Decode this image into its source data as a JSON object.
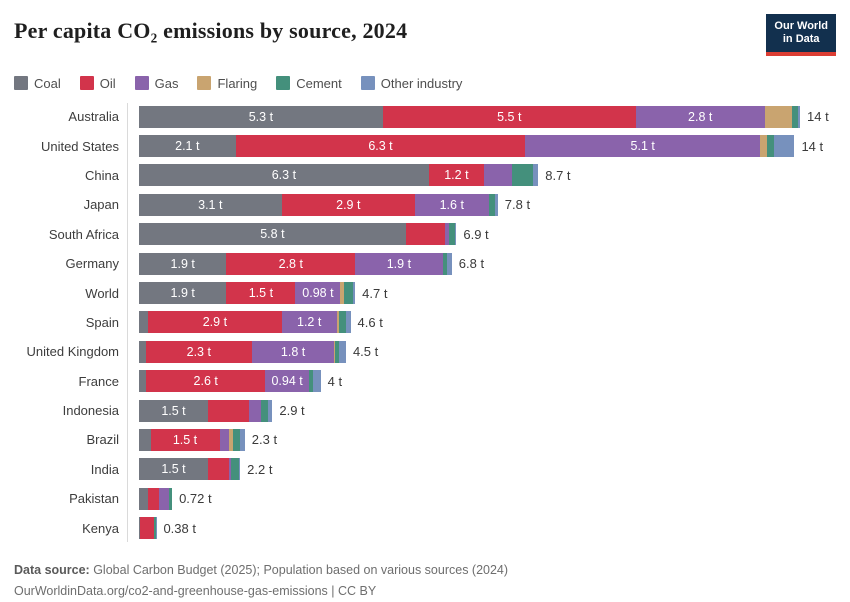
{
  "title": "Per capita CO₂ emissions by source, 2024",
  "logo": {
    "line1": "Our World",
    "line2": "in Data"
  },
  "colors": {
    "coal": "#737780",
    "oil": "#d2344b",
    "gas": "#8a63ab",
    "flaring": "#c9a470",
    "cement": "#44907c",
    "other_industry": "#7791bd",
    "logo_navy": "#12304e",
    "logo_red": "#dc3d33"
  },
  "legend": {
    "items": [
      {
        "key": "coal",
        "label": "Coal"
      },
      {
        "key": "oil",
        "label": "Oil"
      },
      {
        "key": "gas",
        "label": "Gas"
      },
      {
        "key": "flaring",
        "label": "Flaring"
      },
      {
        "key": "cement",
        "label": "Cement"
      },
      {
        "key": "other_industry",
        "label": "Other industry"
      }
    ]
  },
  "chart_data": {
    "type": "bar",
    "orientation": "horizontal-stacked",
    "unit": "t CO₂ per capita",
    "title": "Per capita CO₂ emissions by source, 2024",
    "legend_position": "top",
    "sources_order": [
      "Coal",
      "Oil",
      "Gas",
      "Flaring",
      "Cement",
      "Other industry"
    ],
    "categories": [
      "Australia",
      "United States",
      "China",
      "Japan",
      "South Africa",
      "Germany",
      "World",
      "Spain",
      "United Kingdom",
      "France",
      "Indonesia",
      "Brazil",
      "India",
      "Pakistan",
      "Kenya"
    ],
    "rows": [
      {
        "country": "Australia",
        "total_label": "14 t",
        "segments": [
          {
            "key": "coal",
            "value": 5.3,
            "label": "5.3 t"
          },
          {
            "key": "oil",
            "value": 5.5,
            "label": "5.5 t"
          },
          {
            "key": "gas",
            "value": 2.8,
            "label": "2.8 t"
          },
          {
            "key": "flaring",
            "value": 0.6,
            "label": ""
          },
          {
            "key": "cement",
            "value": 0.12,
            "label": ""
          },
          {
            "key": "other_industry",
            "value": 0.05,
            "label": ""
          }
        ]
      },
      {
        "country": "United States",
        "total_label": "14 t",
        "segments": [
          {
            "key": "coal",
            "value": 2.1,
            "label": "2.1 t"
          },
          {
            "key": "oil",
            "value": 6.3,
            "label": "6.3 t"
          },
          {
            "key": "gas",
            "value": 5.1,
            "label": "5.1 t"
          },
          {
            "key": "flaring",
            "value": 0.15,
            "label": ""
          },
          {
            "key": "cement",
            "value": 0.15,
            "label": ""
          },
          {
            "key": "other_industry",
            "value": 0.45,
            "label": ""
          }
        ]
      },
      {
        "country": "China",
        "total_label": "8.7 t",
        "segments": [
          {
            "key": "coal",
            "value": 6.3,
            "label": "6.3 t"
          },
          {
            "key": "oil",
            "value": 1.2,
            "label": "1.2 t"
          },
          {
            "key": "gas",
            "value": 0.6,
            "label": ""
          },
          {
            "key": "cement",
            "value": 0.46,
            "label": ""
          },
          {
            "key": "other_industry",
            "value": 0.12,
            "label": ""
          }
        ]
      },
      {
        "country": "Japan",
        "total_label": "7.8 t",
        "segments": [
          {
            "key": "coal",
            "value": 3.1,
            "label": "3.1 t"
          },
          {
            "key": "oil",
            "value": 2.9,
            "label": "2.9 t"
          },
          {
            "key": "gas",
            "value": 1.6,
            "label": "1.6 t"
          },
          {
            "key": "cement",
            "value": 0.15,
            "label": ""
          },
          {
            "key": "other_industry",
            "value": 0.05,
            "label": ""
          }
        ]
      },
      {
        "country": "South Africa",
        "total_label": "6.9 t",
        "segments": [
          {
            "key": "coal",
            "value": 5.8,
            "label": "5.8 t"
          },
          {
            "key": "oil",
            "value": 0.85,
            "label": ""
          },
          {
            "key": "gas",
            "value": 0.1,
            "label": ""
          },
          {
            "key": "cement",
            "value": 0.13,
            "label": ""
          },
          {
            "key": "other_industry",
            "value": 0.02,
            "label": ""
          }
        ]
      },
      {
        "country": "Germany",
        "total_label": "6.8 t",
        "segments": [
          {
            "key": "coal",
            "value": 1.9,
            "label": "1.9 t"
          },
          {
            "key": "oil",
            "value": 2.8,
            "label": "2.8 t"
          },
          {
            "key": "gas",
            "value": 1.9,
            "label": "1.9 t"
          },
          {
            "key": "cement",
            "value": 0.1,
            "label": ""
          },
          {
            "key": "other_industry",
            "value": 0.1,
            "label": ""
          }
        ]
      },
      {
        "country": "World",
        "total_label": "4.7 t",
        "segments": [
          {
            "key": "coal",
            "value": 1.9,
            "label": "1.9 t"
          },
          {
            "key": "oil",
            "value": 1.5,
            "label": "1.5 t"
          },
          {
            "key": "gas",
            "value": 0.98,
            "label": "0.98 t"
          },
          {
            "key": "flaring",
            "value": 0.07,
            "label": ""
          },
          {
            "key": "cement",
            "value": 0.2,
            "label": ""
          },
          {
            "key": "other_industry",
            "value": 0.05,
            "label": ""
          }
        ]
      },
      {
        "country": "Spain",
        "total_label": "4.6 t",
        "segments": [
          {
            "key": "coal",
            "value": 0.2,
            "label": ""
          },
          {
            "key": "oil",
            "value": 2.9,
            "label": "2.9 t"
          },
          {
            "key": "gas",
            "value": 1.2,
            "label": "1.2 t"
          },
          {
            "key": "flaring",
            "value": 0.04,
            "label": ""
          },
          {
            "key": "cement",
            "value": 0.16,
            "label": ""
          },
          {
            "key": "other_industry",
            "value": 0.1,
            "label": ""
          }
        ]
      },
      {
        "country": "United Kingdom",
        "total_label": "4.5 t",
        "segments": [
          {
            "key": "coal",
            "value": 0.15,
            "label": ""
          },
          {
            "key": "oil",
            "value": 2.3,
            "label": "2.3 t"
          },
          {
            "key": "gas",
            "value": 1.8,
            "label": "1.8 t"
          },
          {
            "key": "flaring",
            "value": 0.02,
            "label": ""
          },
          {
            "key": "cement",
            "value": 0.08,
            "label": ""
          },
          {
            "key": "other_industry",
            "value": 0.15,
            "label": ""
          }
        ]
      },
      {
        "country": "France",
        "total_label": "4 t",
        "segments": [
          {
            "key": "coal",
            "value": 0.15,
            "label": ""
          },
          {
            "key": "oil",
            "value": 2.6,
            "label": "2.6 t"
          },
          {
            "key": "gas",
            "value": 0.94,
            "label": "0.94 t"
          },
          {
            "key": "cement",
            "value": 0.1,
            "label": ""
          },
          {
            "key": "other_industry",
            "value": 0.16,
            "label": ""
          }
        ]
      },
      {
        "country": "Indonesia",
        "total_label": "2.9 t",
        "segments": [
          {
            "key": "coal",
            "value": 1.5,
            "label": "1.5 t"
          },
          {
            "key": "oil",
            "value": 0.9,
            "label": ""
          },
          {
            "key": "gas",
            "value": 0.25,
            "label": ""
          },
          {
            "key": "cement",
            "value": 0.15,
            "label": ""
          },
          {
            "key": "other_industry",
            "value": 0.1,
            "label": ""
          }
        ]
      },
      {
        "country": "Brazil",
        "total_label": "2.3 t",
        "segments": [
          {
            "key": "coal",
            "value": 0.25,
            "label": ""
          },
          {
            "key": "oil",
            "value": 1.5,
            "label": "1.5 t"
          },
          {
            "key": "gas",
            "value": 0.2,
            "label": ""
          },
          {
            "key": "flaring",
            "value": 0.1,
            "label": ""
          },
          {
            "key": "cement",
            "value": 0.15,
            "label": ""
          },
          {
            "key": "other_industry",
            "value": 0.1,
            "label": ""
          }
        ]
      },
      {
        "country": "India",
        "total_label": "2.2 t",
        "segments": [
          {
            "key": "coal",
            "value": 1.5,
            "label": "1.5 t"
          },
          {
            "key": "oil",
            "value": 0.45,
            "label": ""
          },
          {
            "key": "gas",
            "value": 0.05,
            "label": ""
          },
          {
            "key": "cement",
            "value": 0.17,
            "label": ""
          },
          {
            "key": "other_industry",
            "value": 0.03,
            "label": ""
          }
        ]
      },
      {
        "country": "Pakistan",
        "total_label": "0.72 t",
        "segments": [
          {
            "key": "coal",
            "value": 0.2,
            "label": ""
          },
          {
            "key": "oil",
            "value": 0.24,
            "label": ""
          },
          {
            "key": "gas",
            "value": 0.22,
            "label": ""
          },
          {
            "key": "cement",
            "value": 0.06,
            "label": ""
          }
        ]
      },
      {
        "country": "Kenya",
        "total_label": "0.38 t",
        "segments": [
          {
            "key": "coal",
            "value": 0.03,
            "label": ""
          },
          {
            "key": "oil",
            "value": 0.29,
            "label": ""
          },
          {
            "key": "cement",
            "value": 0.05,
            "label": ""
          },
          {
            "key": "other_industry",
            "value": 0.01,
            "label": ""
          }
        ]
      }
    ]
  },
  "footer": {
    "source_bold": "Data source:",
    "source_rest": " Global Carbon Budget (2025); Population based on various sources (2024)",
    "line2_link": "OurWorldinData.org/co2-and-greenhouse-gas-emissions",
    "line2_license": " | CC BY"
  }
}
